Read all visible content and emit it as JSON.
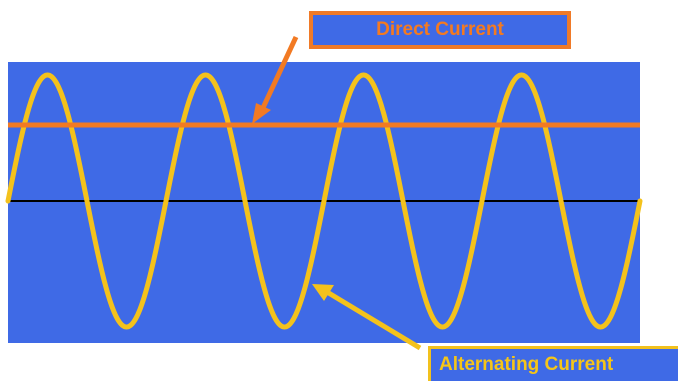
{
  "labels": {
    "direct_current": "Direct Current",
    "alternating_current": "Alternating Current"
  },
  "colors": {
    "background_panel": "#3f6ae6",
    "direct_current_line": "#f27a23",
    "alternating_current_wave": "#f4c21c",
    "baseline": "#000000",
    "dc_label_text": "#f47a20",
    "ac_label_text": "#f5c518"
  },
  "wave": {
    "cycles": 4
  }
}
